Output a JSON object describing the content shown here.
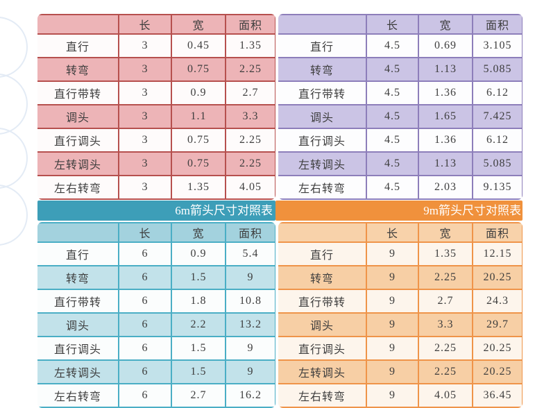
{
  "columns": [
    "",
    "长",
    "宽",
    "面积"
  ],
  "tables": [
    {
      "id": "3m",
      "banner": null,
      "theme": {
        "border": "#b6504e",
        "header": "#edb4b7",
        "fill": "#edb4b7",
        "white": "#fefbfb",
        "banner_bg": ""
      },
      "rows": [
        [
          "直行",
          "3",
          "0.45",
          "1.35"
        ],
        [
          "转弯",
          "3",
          "0.75",
          "2.25"
        ],
        [
          "直行带转",
          "3",
          "0.9",
          "2.7"
        ],
        [
          "调头",
          "3",
          "1.1",
          "3.3"
        ],
        [
          "直行调头",
          "3",
          "0.75",
          "2.25"
        ],
        [
          "左转调头",
          "3",
          "0.75",
          "2.25"
        ],
        [
          "左右转弯",
          "3",
          "1.35",
          "4.05"
        ]
      ]
    },
    {
      "id": "4.5m",
      "banner": null,
      "theme": {
        "border": "#8d7eba",
        "header": "#cbc4e5",
        "fill": "#cbc4e5",
        "white": "#fdfdfe",
        "banner_bg": ""
      },
      "rows": [
        [
          "直行",
          "4.5",
          "0.69",
          "3.105"
        ],
        [
          "转弯",
          "4.5",
          "1.13",
          "5.085"
        ],
        [
          "直行带转",
          "4.5",
          "1.36",
          "6.12"
        ],
        [
          "调头",
          "4.5",
          "1.65",
          "7.425"
        ],
        [
          "直行调头",
          "4.5",
          "1.36",
          "6.12"
        ],
        [
          "左转调头",
          "4.5",
          "1.13",
          "5.085"
        ],
        [
          "左右转弯",
          "4.5",
          "2.03",
          "9.135"
        ]
      ]
    },
    {
      "id": "6m",
      "banner": "6m箭头尺寸对照表",
      "theme": {
        "border": "#4aaec5",
        "header": "#a3d2de",
        "fill": "#c2e2ea",
        "white": "#fbfdfd",
        "banner_bg": "#3d9eb8"
      },
      "rows": [
        [
          "直行",
          "6",
          "0.9",
          "5.4"
        ],
        [
          "转弯",
          "6",
          "1.5",
          "9"
        ],
        [
          "直行带转",
          "6",
          "1.8",
          "10.8"
        ],
        [
          "调头",
          "6",
          "2.2",
          "13.2"
        ],
        [
          "直行调头",
          "6",
          "1.5",
          "9"
        ],
        [
          "左转调头",
          "6",
          "1.5",
          "9"
        ],
        [
          "左右转弯",
          "6",
          "2.7",
          "16.2"
        ]
      ]
    },
    {
      "id": "9m",
      "banner": "9m箭头尺寸对照表",
      "theme": {
        "border": "#ef9449",
        "header": "#f8d2aa",
        "fill": "#f7cfa5",
        "white": "#fdf5ec",
        "banner_bg": "#f0913c"
      },
      "rows": [
        [
          "直行",
          "9",
          "1.35",
          "12.15"
        ],
        [
          "转弯",
          "9",
          "2.25",
          "20.25"
        ],
        [
          "直行带转",
          "9",
          "2.7",
          "24.3"
        ],
        [
          "调头",
          "9",
          "3.3",
          "29.7"
        ],
        [
          "直行调头",
          "9",
          "2.25",
          "20.25"
        ],
        [
          "左转调头",
          "9",
          "2.25",
          "20.25"
        ],
        [
          "左右转弯",
          "9",
          "4.05",
          "36.45"
        ]
      ]
    }
  ]
}
